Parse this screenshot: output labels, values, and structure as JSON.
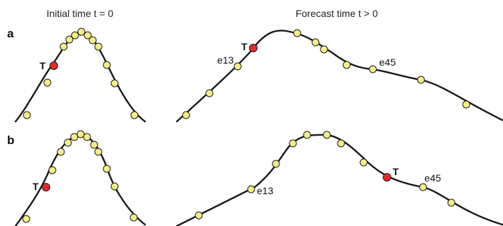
{
  "headers": {
    "initial": "Initial time t = 0",
    "forecast": "Forecast time t > 0"
  },
  "panels": {
    "a": {
      "letter": "a",
      "initial_marker": "T",
      "forecast_marker": "T",
      "label_e13": "e13",
      "label_e45": "e45"
    },
    "b": {
      "letter": "b",
      "initial_marker": "T",
      "forecast_marker": "T",
      "label_e13": "e13",
      "label_e45": "e45"
    }
  },
  "colors": {
    "member_fill": "#f5ec8c",
    "target_fill": "#e02b2b",
    "curve": "#1a1a1a"
  }
}
